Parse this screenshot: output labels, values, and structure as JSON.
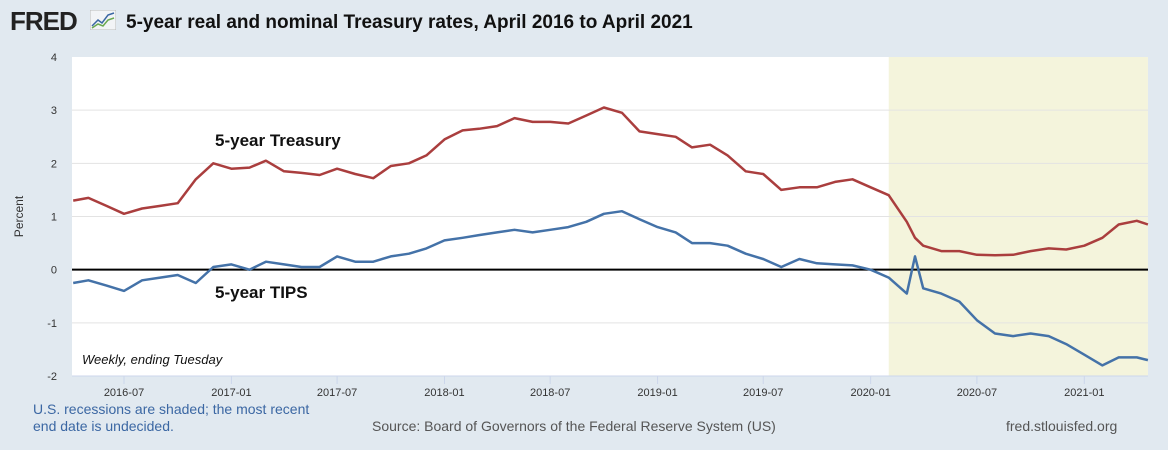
{
  "header": {
    "logo": "FRED",
    "logo_icon": "line-chart-icon",
    "title": "5-year real and nominal Treasury rates, April 2016 to April 2021"
  },
  "footer": {
    "recession_note": "U.S. recessions are shaded; the most recent end date is undecided.",
    "source": "Source: Board of Governors of the Federal Reserve System (US)",
    "url": "fred.stlouisfed.org"
  },
  "chart_data": {
    "type": "line",
    "title": "5-year real and nominal Treasury rates, April 2016 to April 2021",
    "ylabel": "Percent",
    "xlabel": "",
    "ylim": [
      -2,
      4
    ],
    "yticks": [
      "4",
      "3",
      "2",
      "1",
      "0",
      "-1",
      "-2"
    ],
    "xticks": [
      "2016-07",
      "2017-01",
      "2017-07",
      "2018-01",
      "2018-07",
      "2019-01",
      "2019-07",
      "2020-01",
      "2020-07",
      "2021-01"
    ],
    "note": "Weekly, ending Tuesday",
    "grid": true,
    "recession_shading": {
      "start": "2020-02-01",
      "end": "2021-04-20",
      "color": "#f4f4dc"
    },
    "zero_line": true,
    "colors": {
      "treasury": "#aa3e3e",
      "tips": "#4472a8"
    },
    "x": [
      "2016-04-05",
      "2016-05-01",
      "2016-06-01",
      "2016-07-01",
      "2016-08-01",
      "2016-09-01",
      "2016-10-01",
      "2016-11-01",
      "2016-12-01",
      "2017-01-01",
      "2017-02-01",
      "2017-03-01",
      "2017-04-01",
      "2017-05-01",
      "2017-06-01",
      "2017-07-01",
      "2017-08-01",
      "2017-09-01",
      "2017-10-01",
      "2017-11-01",
      "2017-12-01",
      "2018-01-01",
      "2018-02-01",
      "2018-03-01",
      "2018-04-01",
      "2018-05-01",
      "2018-06-01",
      "2018-07-01",
      "2018-08-01",
      "2018-09-01",
      "2018-10-01",
      "2018-11-01",
      "2018-12-01",
      "2019-01-01",
      "2019-02-01",
      "2019-03-01",
      "2019-04-01",
      "2019-05-01",
      "2019-06-01",
      "2019-07-01",
      "2019-08-01",
      "2019-09-01",
      "2019-10-01",
      "2019-11-01",
      "2019-12-01",
      "2020-01-01",
      "2020-02-01",
      "2020-03-03",
      "2020-03-17",
      "2020-03-31",
      "2020-05-01",
      "2020-06-01",
      "2020-07-01",
      "2020-08-01",
      "2020-09-01",
      "2020-10-01",
      "2020-11-01",
      "2020-12-01",
      "2021-01-01",
      "2021-02-01",
      "2021-03-01",
      "2021-04-01",
      "2021-04-20"
    ],
    "series": [
      {
        "name": "5-year Treasury",
        "values": [
          1.3,
          1.35,
          1.2,
          1.05,
          1.15,
          1.2,
          1.25,
          1.7,
          2.0,
          1.9,
          1.92,
          2.05,
          1.85,
          1.82,
          1.78,
          1.9,
          1.8,
          1.72,
          1.95,
          2.0,
          2.15,
          2.45,
          2.62,
          2.65,
          2.7,
          2.85,
          2.78,
          2.78,
          2.75,
          2.9,
          3.05,
          2.95,
          2.6,
          2.55,
          2.5,
          2.3,
          2.35,
          2.15,
          1.85,
          1.8,
          1.5,
          1.55,
          1.55,
          1.65,
          1.7,
          1.55,
          1.4,
          0.9,
          0.6,
          0.45,
          0.35,
          0.35,
          0.28,
          0.27,
          0.28,
          0.35,
          0.4,
          0.38,
          0.45,
          0.6,
          0.85,
          0.92,
          0.85
        ]
      },
      {
        "name": "5-year TIPS",
        "values": [
          -0.25,
          -0.2,
          -0.3,
          -0.4,
          -0.2,
          -0.15,
          -0.1,
          -0.25,
          0.05,
          0.1,
          0.0,
          0.15,
          0.1,
          0.05,
          0.05,
          0.25,
          0.15,
          0.15,
          0.25,
          0.3,
          0.4,
          0.55,
          0.6,
          0.65,
          0.7,
          0.75,
          0.7,
          0.75,
          0.8,
          0.9,
          1.05,
          1.1,
          0.95,
          0.8,
          0.7,
          0.5,
          0.5,
          0.45,
          0.3,
          0.2,
          0.05,
          0.2,
          0.12,
          0.1,
          0.08,
          0.0,
          -0.15,
          -0.45,
          0.25,
          -0.35,
          -0.45,
          -0.6,
          -0.95,
          -1.2,
          -1.25,
          -1.2,
          -1.25,
          -1.4,
          -1.6,
          -1.8,
          -1.65,
          -1.65,
          -1.7
        ]
      }
    ]
  }
}
